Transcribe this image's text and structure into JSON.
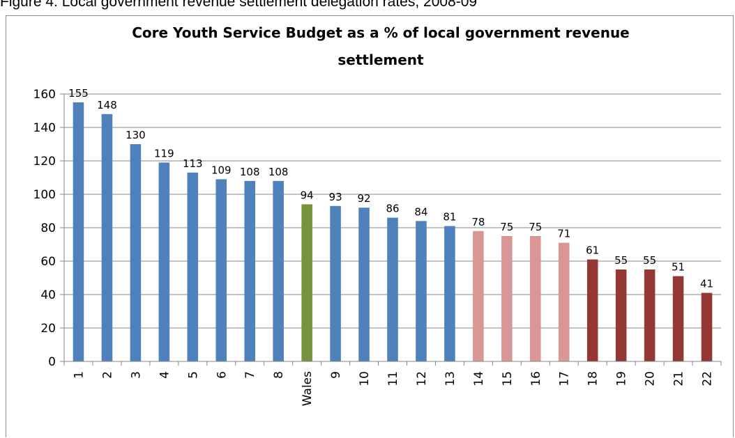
{
  "caption": "Figure 4: Local government revenue settlement delegation rates, 2008-09",
  "colors": {
    "blue": "#4f81bd",
    "green": "#77933c",
    "pink": "#d99694",
    "darkred": "#953735",
    "grid": "#868686",
    "axis": "#868686"
  },
  "chart_data": {
    "type": "bar",
    "title_lines": [
      "Core Youth Service Budget as a % of local government revenue",
      "settlement"
    ],
    "xlabel": "",
    "ylabel": "",
    "ylim": [
      0,
      160
    ],
    "yticks": [
      0,
      20,
      40,
      60,
      80,
      100,
      120,
      140,
      160
    ],
    "grid": true,
    "legend": "none",
    "categories": [
      "1",
      "2",
      "3",
      "4",
      "5",
      "6",
      "7",
      "8",
      "Wales",
      "9",
      "10",
      "11",
      "12",
      "13",
      "14",
      "15",
      "16",
      "17",
      "18",
      "19",
      "20",
      "21",
      "22"
    ],
    "values": [
      155,
      148,
      130,
      119,
      113,
      109,
      108,
      108,
      94,
      93,
      92,
      86,
      84,
      81,
      78,
      75,
      75,
      71,
      61,
      55,
      55,
      51,
      41
    ],
    "bar_colors": [
      "blue",
      "blue",
      "blue",
      "blue",
      "blue",
      "blue",
      "blue",
      "blue",
      "green",
      "blue",
      "blue",
      "blue",
      "blue",
      "blue",
      "pink",
      "pink",
      "pink",
      "pink",
      "darkred",
      "darkred",
      "darkred",
      "darkred",
      "darkred"
    ]
  }
}
